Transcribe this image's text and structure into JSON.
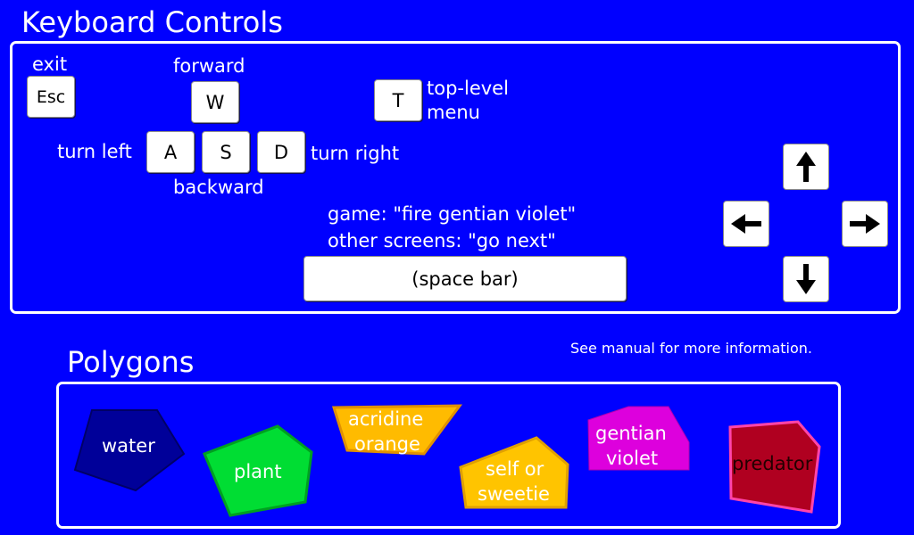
{
  "keyboard": {
    "title": "Keyboard Controls",
    "exit_label": "exit",
    "esc_key": "Esc",
    "forward_label": "forward",
    "w_key": "W",
    "t_key": "T",
    "top_level_line1": "top-level",
    "top_level_line2": "menu",
    "turn_left_label": "turn left",
    "a_key": "A",
    "s_key": "S",
    "d_key": "D",
    "turn_right_label": "turn right",
    "backward_label": "backward",
    "game_line": "game:  \"fire gentian violet\"",
    "other_line": "other screens: \"go next\"",
    "space_bar": "(space bar)",
    "arrow_icons": [
      "arrow-up-icon",
      "arrow-left-icon",
      "arrow-right-icon",
      "arrow-down-icon"
    ]
  },
  "manual_note": "See manual for more information.",
  "polygons": {
    "title": "Polygons",
    "items": [
      {
        "line1": "water",
        "line2": "",
        "color": "#000099"
      },
      {
        "line1": "plant",
        "line2": "",
        "color": "#00dd33"
      },
      {
        "line1": "acridine",
        "line2": "orange",
        "color": "#ffbb00"
      },
      {
        "line1": "self or",
        "line2": "sweetie",
        "color": "#ffc400"
      },
      {
        "line1": "gentian",
        "line2": "violet",
        "color": "#dd00dd"
      },
      {
        "line1": "predator",
        "line2": "",
        "color": "#b00020"
      }
    ]
  }
}
